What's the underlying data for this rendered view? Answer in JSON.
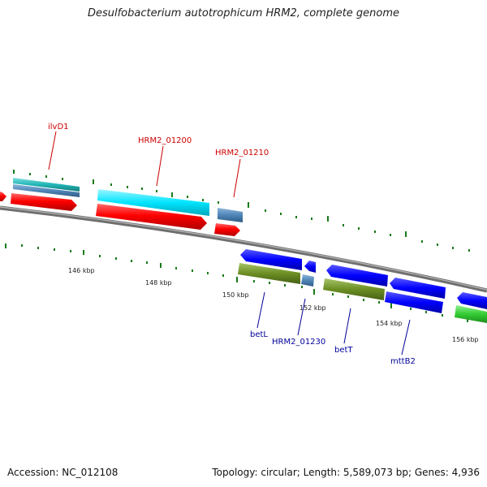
{
  "title": "Desulfobacterium autotrophicum HRM2, complete genome",
  "accession": "Accession: NC_012108",
  "summary": "Topology: circular; Length: 5,589,073 bp; Genes: 4,936",
  "colors": {
    "backbone": "#7a7a7a",
    "tick": "#1a7a1a",
    "label_top": "#cc0000",
    "label_bottom": "#000099",
    "red_gene": "#ff0000",
    "cyan_gene": "#00e5ff",
    "steel_gene": "#4f86b8",
    "blue_gene": "#0000ff",
    "olive_gene": "#6b8e23",
    "green_gene": "#33cc33",
    "teal_gene": "#33b3b3"
  },
  "scale_labels": [
    "146 kbp",
    "148 kbp",
    "150 kbp",
    "152 kbp",
    "154 kbp",
    "156 kbp"
  ],
  "genes_top": [
    "ilvD1",
    "HRM2_01200",
    "HRM2_01210"
  ],
  "genes_bottom": [
    "betL",
    "HRM2_01230",
    "betT",
    "mttB2"
  ]
}
